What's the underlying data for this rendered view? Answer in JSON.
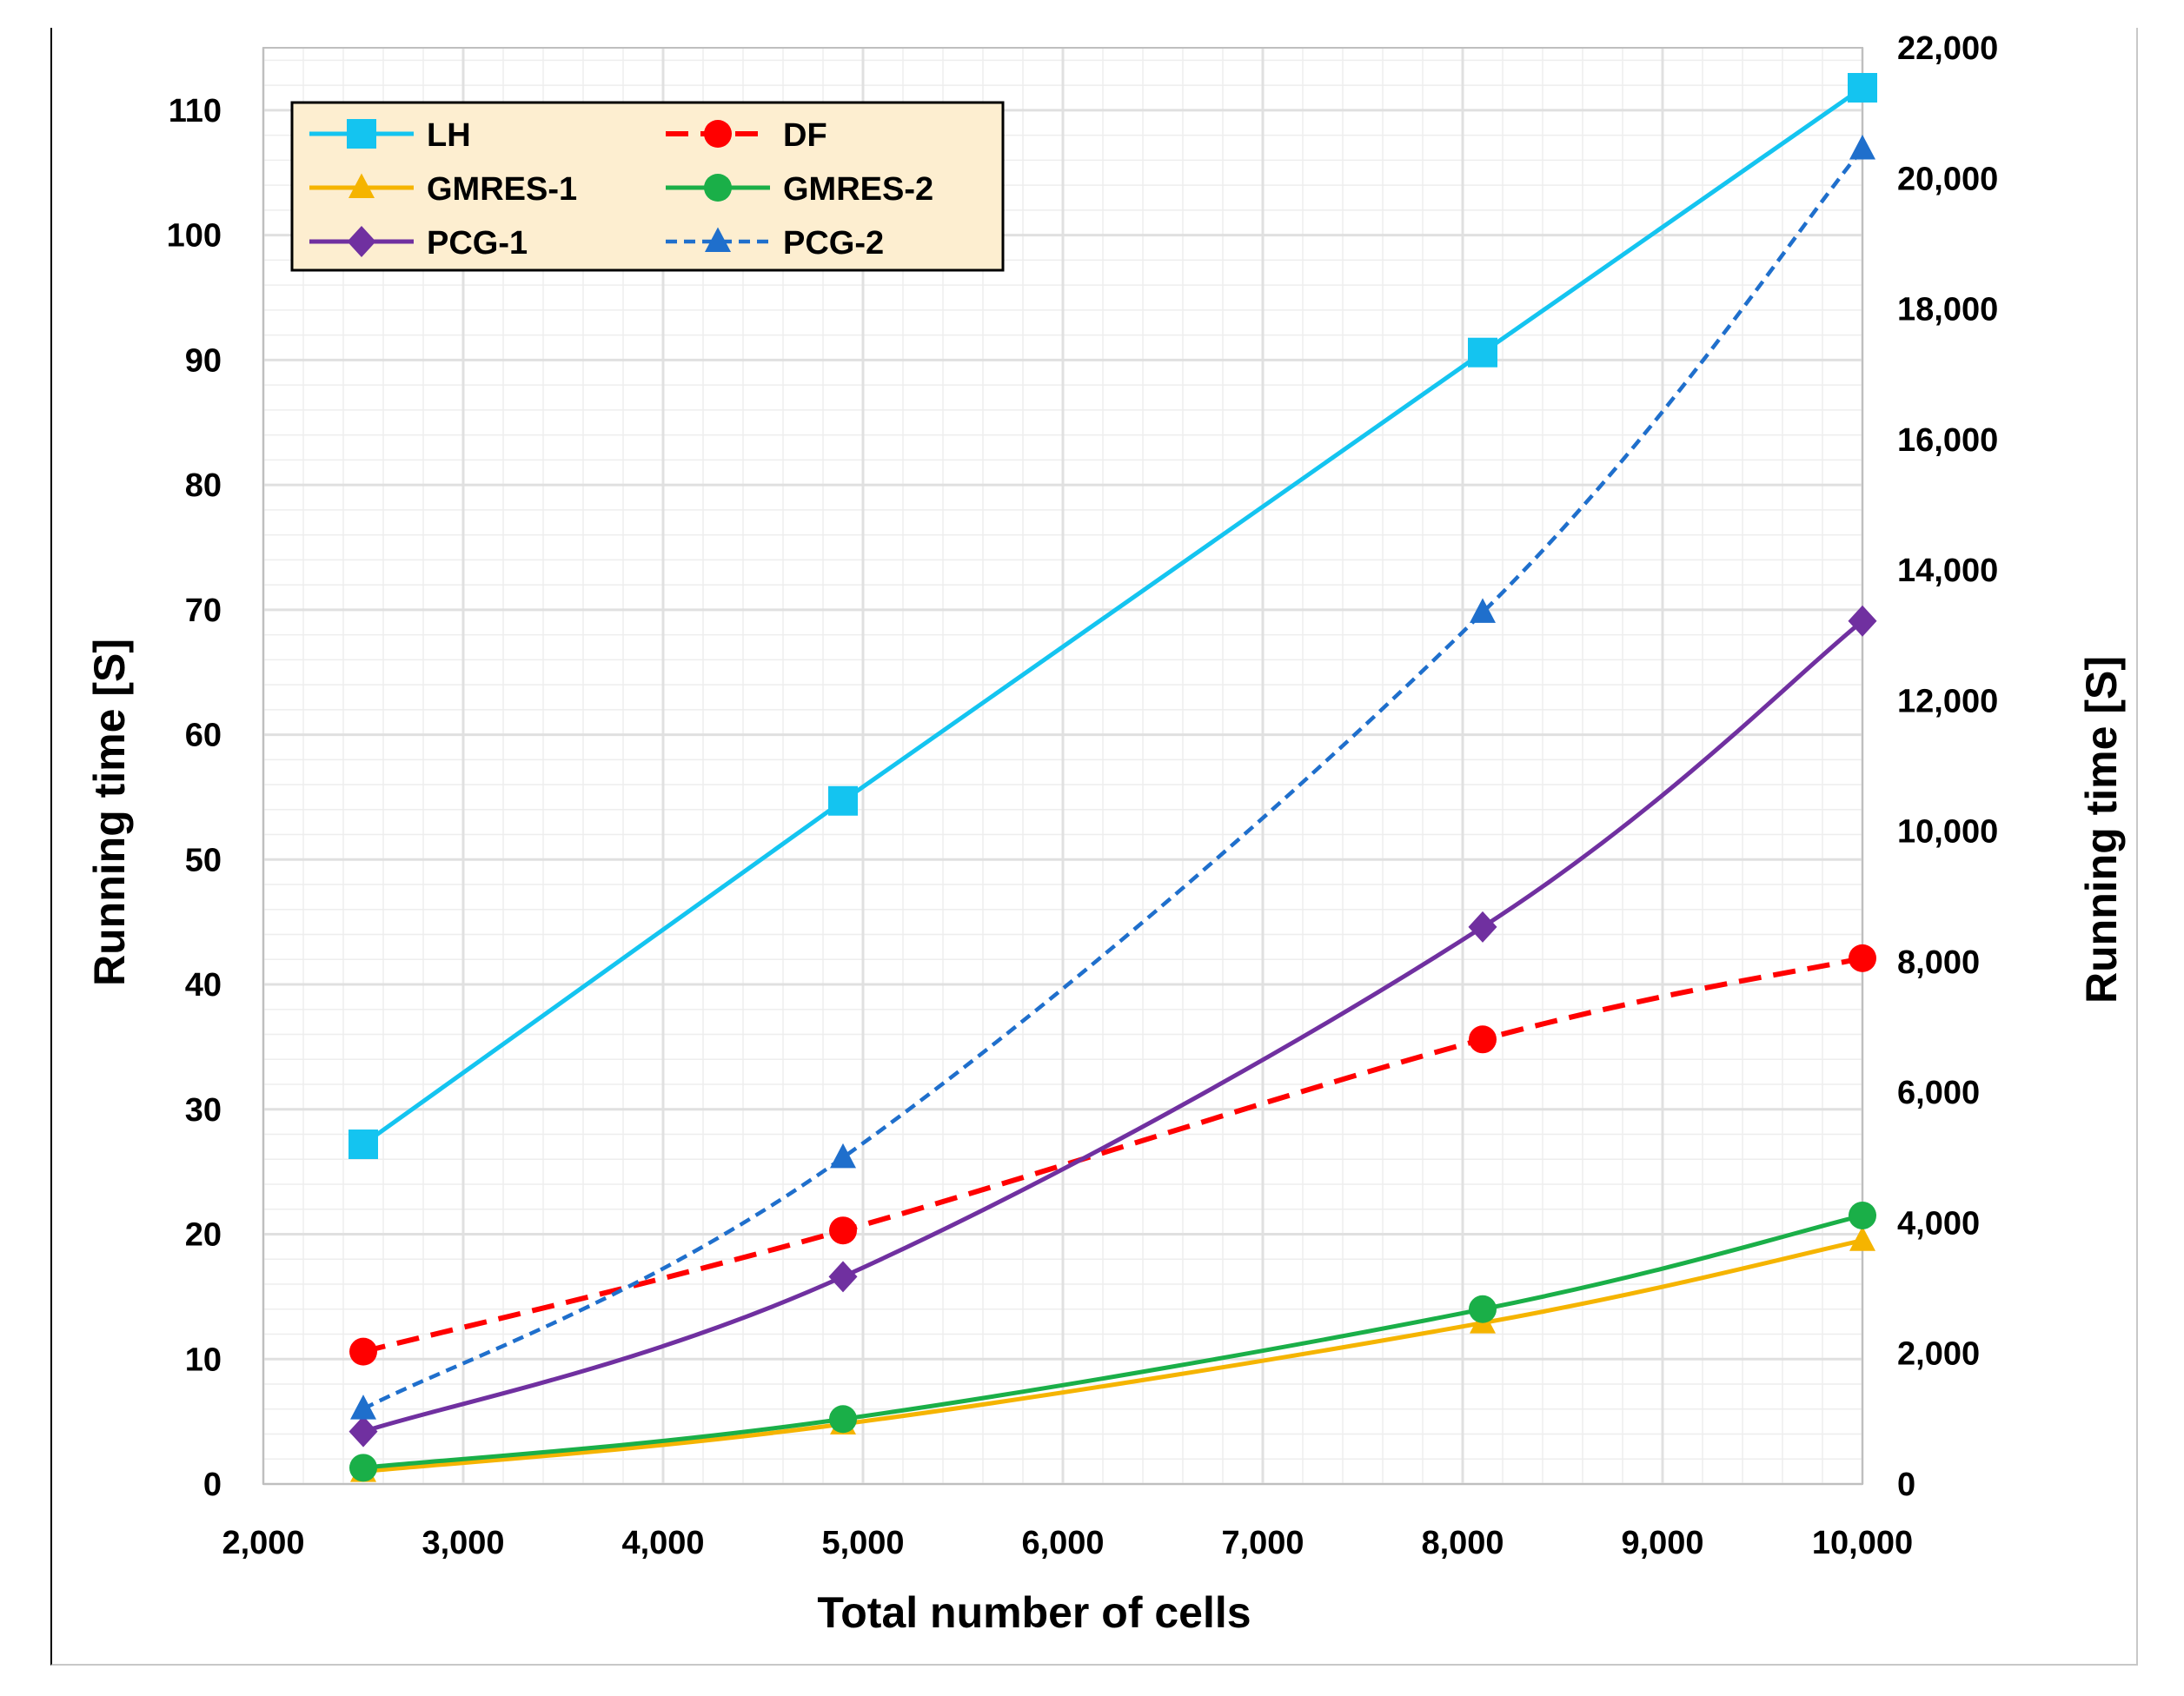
{
  "chart_data": {
    "type": "line",
    "title": "",
    "xlabel": "Total number of cells",
    "ylabel_left": "Running time [S]",
    "ylabel_right": "Running time [S]",
    "xlim": [
      2000,
      10000
    ],
    "ylim_left": [
      0,
      115
    ],
    "ylim_right": [
      0,
      22000
    ],
    "x_ticks": [
      "2,000",
      "3,000",
      "4,000",
      "5,000",
      "6,000",
      "7,000",
      "8,000",
      "9,000",
      "10,000"
    ],
    "y_left_ticks": [
      "0",
      "10",
      "20",
      "30",
      "40",
      "50",
      "60",
      "70",
      "80",
      "90",
      "100",
      "110"
    ],
    "y_right_ticks": [
      "0",
      "2,000",
      "4,000",
      "6,000",
      "8,000",
      "10,000",
      "12,000",
      "14,000",
      "16,000",
      "18,000",
      "20,000",
      "22,000"
    ],
    "grid": true,
    "legend_position": "top-left",
    "x": [
      2500,
      4900,
      8100,
      10000
    ],
    "series": [
      {
        "name": "LH",
        "axis": "left",
        "values": [
          27.2,
          54.7,
          90.6,
          111.8
        ],
        "color": "#14c4f0",
        "marker": "square",
        "dash": "solid",
        "smooth": false
      },
      {
        "name": "DF",
        "axis": "left",
        "values": [
          10.6,
          20.3,
          35.6,
          42.1
        ],
        "color": "#ff0000",
        "marker": "circle",
        "dash": "dashed",
        "smooth": true
      },
      {
        "name": "GMRES-1",
        "axis": "left",
        "values": [
          1.0,
          4.8,
          12.9,
          19.5
        ],
        "color": "#f5b400",
        "marker": "triangle",
        "dash": "solid",
        "smooth": true
      },
      {
        "name": "GMRES-2",
        "axis": "left",
        "values": [
          1.3,
          5.2,
          14.0,
          21.5
        ],
        "color": "#1aaf48",
        "marker": "circle",
        "dash": "solid",
        "smooth": true
      },
      {
        "name": "PCG-1",
        "axis": "left",
        "values": [
          4.2,
          16.6,
          44.6,
          69.1
        ],
        "color": "#7030a0",
        "marker": "diamond",
        "dash": "solid",
        "smooth": true
      },
      {
        "name": "PCG-2",
        "axis": "right",
        "values": [
          1150,
          5000,
          13350,
          20450
        ],
        "color": "#1f6fcc",
        "marker": "triangle",
        "dash": "dotted",
        "smooth": true
      }
    ]
  },
  "legend_layout": [
    [
      "LH",
      "DF"
    ],
    [
      "GMRES-1",
      "GMRES-2"
    ],
    [
      "PCG-1",
      "PCG-2"
    ]
  ],
  "colors": {
    "legend_bg": "#fdeed0",
    "grid": "#e0e0e0",
    "plot_border": "#bfbfbf"
  }
}
